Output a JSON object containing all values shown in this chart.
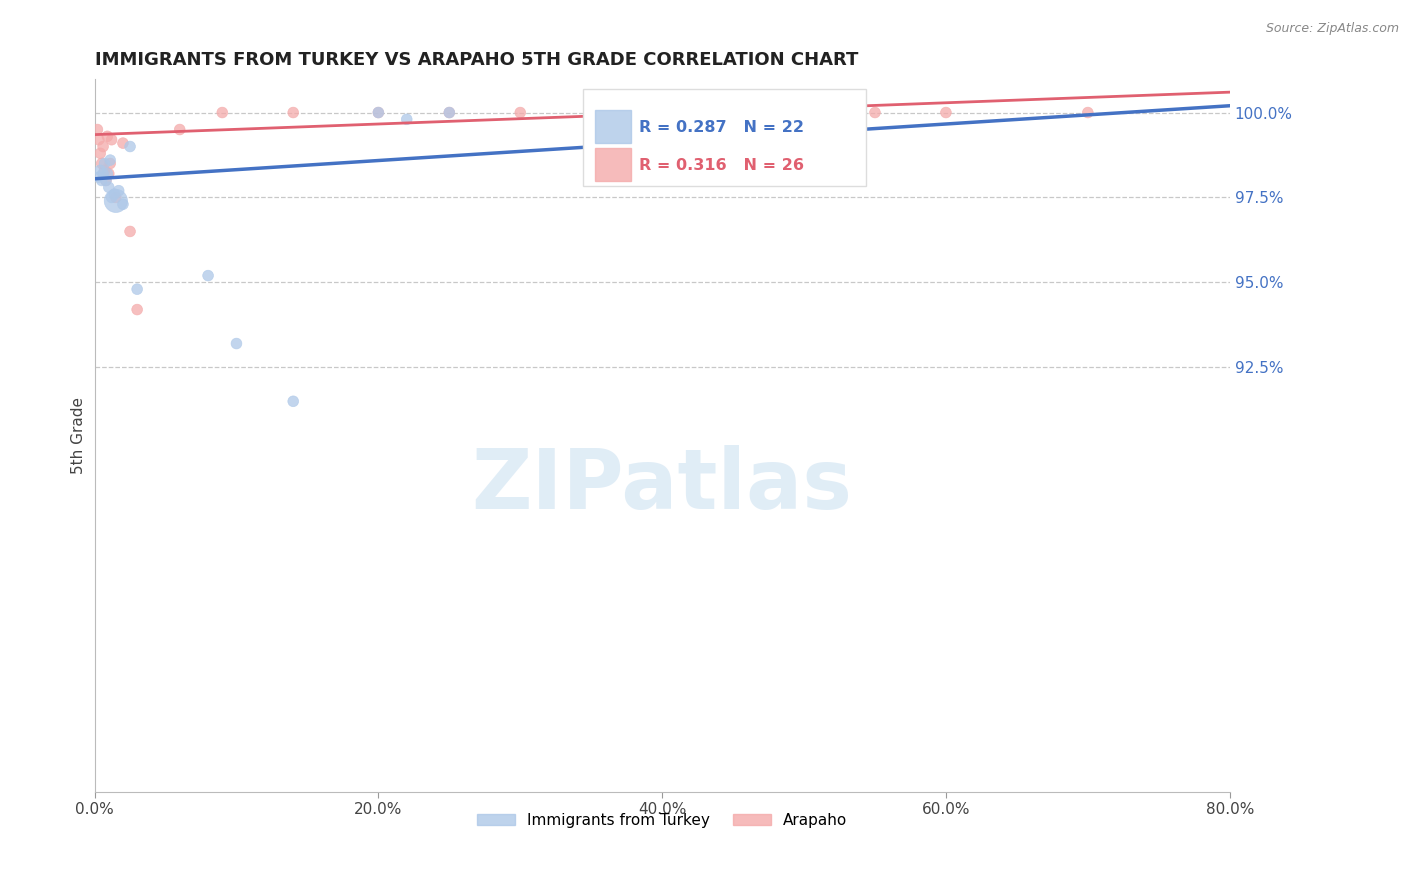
{
  "title": "IMMIGRANTS FROM TURKEY VS ARAPAHO 5TH GRADE CORRELATION CHART",
  "source": "Source: ZipAtlas.com",
  "ylabel": "5th Grade",
  "xlim": [
    0.0,
    80.0
  ],
  "ylim": [
    80.0,
    101.0
  ],
  "xticks": [
    0.0,
    20.0,
    40.0,
    60.0,
    80.0
  ],
  "xticklabels": [
    "0.0%",
    "20.0%",
    "40.0%",
    "60.0%",
    "80.0%"
  ],
  "yticks_right": [
    92.5,
    95.0,
    97.5,
    100.0
  ],
  "yticklabels_right": [
    "92.5%",
    "95.0%",
    "97.5%",
    "100.0%"
  ],
  "blue_color": "#aec8e8",
  "pink_color": "#f4aaaa",
  "blue_line_color": "#4472c4",
  "pink_line_color": "#e06070",
  "legend_blue_label": "Immigrants from Turkey",
  "legend_pink_label": "Arapaho",
  "R_blue": 0.287,
  "N_blue": 22,
  "R_pink": 0.316,
  "N_pink": 26,
  "blue_line_x0": 0.0,
  "blue_line_y0": 98.05,
  "blue_line_x1": 80.0,
  "blue_line_y1": 100.2,
  "pink_line_x0": 0.0,
  "pink_line_y0": 99.35,
  "pink_line_x1": 80.0,
  "pink_line_y1": 100.6,
  "blue_points_x": [
    0.3,
    0.4,
    0.5,
    0.6,
    0.7,
    0.8,
    0.9,
    1.0,
    1.1,
    1.2,
    1.4,
    1.5,
    1.7,
    2.0,
    2.5,
    3.0,
    8.0,
    10.0,
    14.0,
    20.0,
    22.0,
    25.0
  ],
  "blue_points_y": [
    98.1,
    98.3,
    98.0,
    98.2,
    98.5,
    98.0,
    98.2,
    97.8,
    98.6,
    97.5,
    97.6,
    97.4,
    97.7,
    97.3,
    99.0,
    94.8,
    95.2,
    93.2,
    91.5,
    100.0,
    99.8,
    100.0
  ],
  "blue_sizes": [
    60,
    60,
    60,
    60,
    60,
    60,
    60,
    60,
    60,
    60,
    60,
    280,
    60,
    60,
    60,
    60,
    60,
    60,
    60,
    60,
    60,
    60
  ],
  "pink_points_x": [
    0.2,
    0.3,
    0.4,
    0.5,
    0.6,
    0.7,
    0.8,
    0.9,
    1.0,
    1.1,
    1.2,
    1.5,
    2.0,
    2.5,
    3.0,
    6.0,
    9.0,
    14.0,
    20.0,
    25.0,
    30.0,
    35.0,
    40.0,
    55.0,
    60.0,
    70.0
  ],
  "pink_points_y": [
    99.5,
    99.2,
    98.8,
    98.5,
    99.0,
    98.3,
    98.0,
    99.3,
    98.2,
    98.5,
    99.2,
    97.5,
    99.1,
    96.5,
    94.2,
    99.5,
    100.0,
    100.0,
    100.0,
    100.0,
    100.0,
    100.0,
    100.0,
    100.0,
    100.0,
    100.0
  ],
  "pink_sizes": [
    60,
    60,
    60,
    60,
    60,
    60,
    60,
    60,
    60,
    60,
    60,
    60,
    60,
    60,
    60,
    60,
    60,
    60,
    60,
    60,
    60,
    60,
    60,
    60,
    60,
    60
  ],
  "watermark_text": "ZIPatlas",
  "watermark_color": "#c8dff0",
  "background_color": "#ffffff",
  "grid_color": "#bbbbbb",
  "right_tick_color": "#4472c4"
}
